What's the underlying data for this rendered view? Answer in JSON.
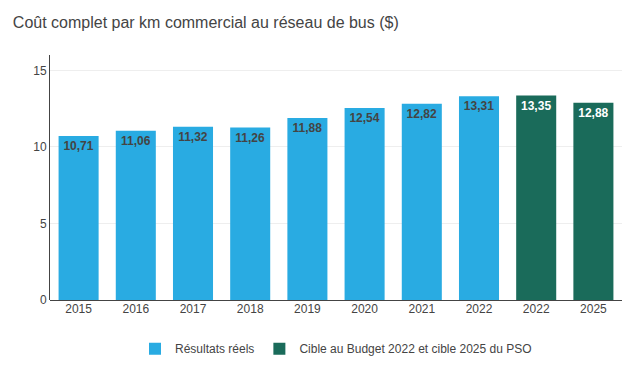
{
  "chart_data": {
    "type": "bar",
    "title": "Coût complet par km commercial au réseau de bus ($)",
    "categories": [
      "2015",
      "2016",
      "2017",
      "2018",
      "2019",
      "2020",
      "2021",
      "2022",
      "2022",
      "2025"
    ],
    "series": [
      {
        "name": "Résultats réels",
        "color": "#29ABE2",
        "values": [
          10.71,
          11.06,
          11.32,
          11.26,
          11.88,
          12.54,
          12.82,
          13.31,
          null,
          null
        ],
        "value_labels": [
          "10,71",
          "11,06",
          "11,32",
          "11,26",
          "11,88",
          "12,54",
          "12,82",
          "13,31",
          null,
          null
        ]
      },
      {
        "name": "Cible au Budget 2022 et cible 2025 du PSO",
        "color": "#1A6B5A",
        "values": [
          null,
          null,
          null,
          null,
          null,
          null,
          null,
          null,
          13.35,
          12.88
        ],
        "value_labels": [
          null,
          null,
          null,
          null,
          null,
          null,
          null,
          null,
          "13,35",
          "12,88"
        ]
      }
    ],
    "ylim": [
      0,
      16
    ],
    "yticks": [
      0,
      5,
      10,
      15
    ],
    "grid": true,
    "data_labels": true,
    "legend": "bottom"
  }
}
